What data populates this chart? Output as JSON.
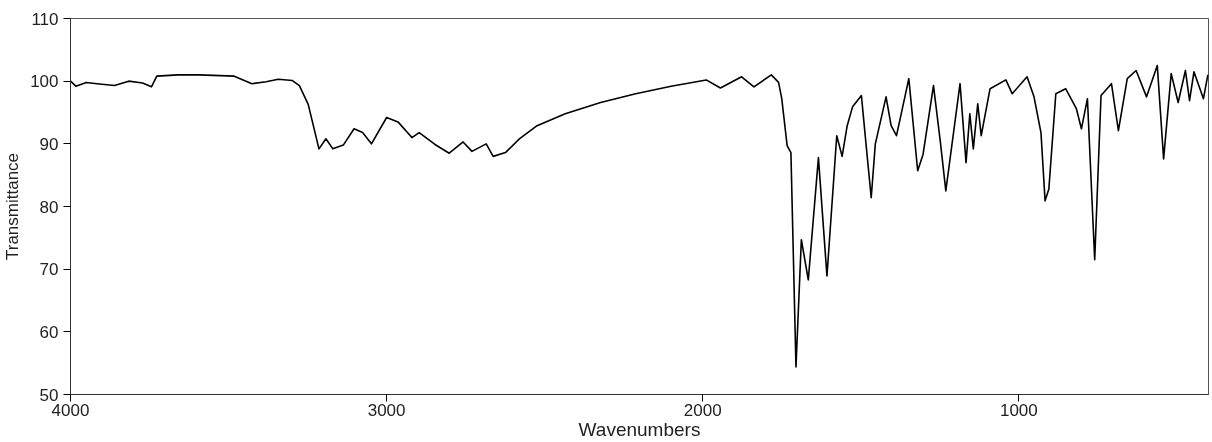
{
  "chart_data": {
    "type": "line",
    "xlabel": "Wavenumbers",
    "ylabel": "Transmittance",
    "xlim": [
      4000,
      400
    ],
    "ylim": [
      50,
      110
    ],
    "xticks": [
      4000,
      3000,
      2000,
      1000
    ],
    "yticks": [
      50,
      60,
      70,
      80,
      90,
      100,
      110
    ],
    "x": [
      4000,
      3983,
      3950,
      3916,
      3861,
      3816,
      3772,
      3744,
      3727,
      3660,
      3593,
      3482,
      3426,
      3381,
      3343,
      3298,
      3276,
      3248,
      3214,
      3192,
      3170,
      3137,
      3103,
      3076,
      3048,
      3000,
      2964,
      2920,
      2897,
      2847,
      2802,
      2758,
      2730,
      2685,
      2663,
      2624,
      2580,
      2524,
      2435,
      2323,
      2212,
      2100,
      1989,
      1944,
      1877,
      1838,
      1783,
      1760,
      1750,
      1733,
      1721,
      1705,
      1688,
      1666,
      1634,
      1607,
      1576,
      1559,
      1543,
      1526,
      1498,
      1485,
      1467,
      1454,
      1420,
      1404,
      1387,
      1348,
      1320,
      1303,
      1270,
      1248,
      1231,
      1186,
      1167,
      1155,
      1144,
      1130,
      1119,
      1091,
      1041,
      1021,
      974,
      952,
      930,
      917,
      905,
      883,
      852,
      818,
      802,
      783,
      760,
      740,
      707,
      685,
      657,
      629,
      596,
      562,
      542,
      518,
      496,
      473,
      460,
      446,
      416,
      402
    ],
    "series": [
      {
        "color": "#000000",
        "values": [
          100,
          99.2,
          99.8,
          99.6,
          99.3,
          100,
          99.7,
          99.1,
          100.8,
          101,
          101,
          100.8,
          99.6,
          99.9,
          100.3,
          100.1,
          99.3,
          96.3,
          89.2,
          90.8,
          89.2,
          89.8,
          92.4,
          91.8,
          90,
          94.2,
          93.5,
          91,
          91.8,
          89.9,
          88.5,
          90.3,
          88.8,
          90,
          88,
          88.6,
          90.8,
          92.9,
          94.8,
          96.6,
          98,
          99.2,
          100.2,
          98.9,
          100.7,
          99.1,
          101,
          99.8,
          97.2,
          89.7,
          88.6,
          54.4,
          74.7,
          68.3,
          87.8,
          68.9,
          91.3,
          88,
          92.9,
          95.9,
          97.7,
          90.8,
          81.4,
          90,
          97.5,
          92.9,
          91.3,
          100.4,
          85.7,
          88.3,
          99.3,
          90.2,
          82.5,
          99.6,
          87,
          94.8,
          89.2,
          96.4,
          91.3,
          98.8,
          100.2,
          98,
          100.7,
          97.5,
          91.8,
          80.9,
          82.8,
          98,
          98.8,
          95.6,
          92.4,
          97.2,
          71.5,
          97.7,
          99.6,
          92.1,
          100.4,
          101.7,
          97.5,
          102.5,
          87.6,
          101.2,
          96.6,
          101.7,
          96.9,
          101.5,
          97.2,
          101
        ]
      }
    ]
  }
}
